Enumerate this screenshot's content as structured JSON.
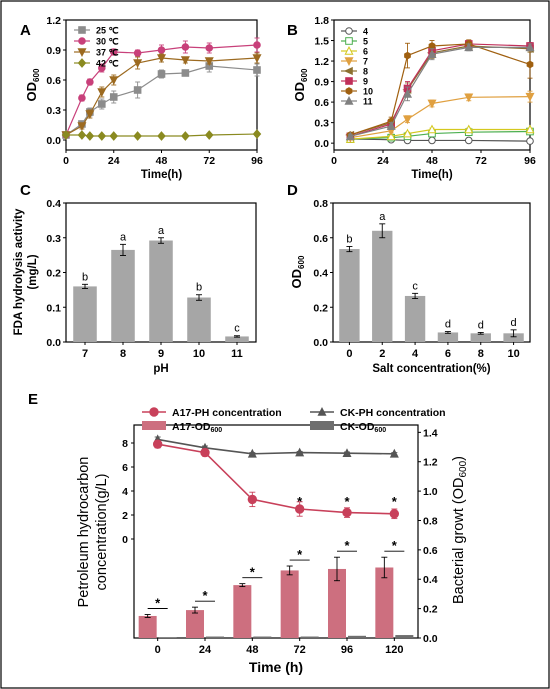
{
  "colors": {
    "t25": "#8c8c8c",
    "t30": "#c8407a",
    "t37": "#9c6a20",
    "t42": "#8a8a20",
    "ph4": "#555555",
    "ph5": "#4caf50",
    "ph6": "#d4c81e",
    "ph7": "#e0a040",
    "ph8": "#8c7030",
    "ph9": "#c0305a",
    "ph10": "#a06010",
    "ph11": "#808080",
    "bar": "#a6a6a6",
    "a17": "#c8405a",
    "a17bar": "#cd6f7f",
    "ck": "#555555",
    "ckbar": "#6e6e6e"
  },
  "chart_data": [
    {
      "panel": "A",
      "type": "line",
      "xlabel": "Time(h)",
      "ylabel": "OD600",
      "ylabel_main": "OD",
      "ylabel_sub": "600",
      "xlim": [
        0,
        96
      ],
      "ylim": [
        -0.1,
        1.2
      ],
      "xticks": [
        0,
        24,
        48,
        72,
        96
      ],
      "yticks": [
        0.0,
        0.3,
        0.6,
        0.9,
        1.2
      ],
      "x": [
        0,
        8,
        12,
        18,
        24,
        36,
        48,
        60,
        72,
        96
      ],
      "legend": "top-left",
      "series": [
        {
          "name": "25 ℃",
          "values": [
            0.05,
            0.16,
            0.28,
            0.36,
            0.43,
            0.5,
            0.66,
            0.67,
            0.74,
            0.7
          ],
          "err": [
            0.01,
            0.02,
            0.04,
            0.05,
            0.06,
            0.08,
            0.04,
            0.03,
            0.06,
            0.06
          ],
          "marker": "square",
          "color": "t25"
        },
        {
          "name": "30 ℃",
          "values": [
            0.05,
            0.42,
            0.58,
            0.72,
            0.88,
            0.87,
            0.9,
            0.93,
            0.92,
            0.95
          ],
          "err": [
            0.01,
            0.03,
            0.03,
            0.04,
            0.03,
            0.03,
            0.05,
            0.06,
            0.05,
            0.07
          ],
          "marker": "circle",
          "color": "t30"
        },
        {
          "name": "37 ℃",
          "values": [
            0.05,
            0.14,
            0.26,
            0.48,
            0.6,
            0.77,
            0.82,
            0.8,
            0.79,
            0.82
          ],
          "err": [
            0.01,
            0.03,
            0.04,
            0.05,
            0.05,
            0.06,
            0.04,
            0.03,
            0.03,
            0.05
          ],
          "marker": "triangle-down",
          "color": "t37"
        },
        {
          "name": "42 ℃",
          "values": [
            0.05,
            0.05,
            0.04,
            0.04,
            0.04,
            0.04,
            0.04,
            0.04,
            0.05,
            0.06
          ],
          "err": [
            0.005,
            0.005,
            0.005,
            0.005,
            0.005,
            0.005,
            0.005,
            0.005,
            0.005,
            0.005
          ],
          "marker": "diamond",
          "color": "t42"
        }
      ]
    },
    {
      "panel": "B",
      "type": "line",
      "xlabel": "Time(h)",
      "ylabel": "OD600",
      "ylabel_main": "OD",
      "ylabel_sub": "600",
      "xlim": [
        0,
        96
      ],
      "ylim": [
        -0.1,
        1.8
      ],
      "xticks": [
        0,
        24,
        48,
        72,
        96
      ],
      "yticks": [
        0.0,
        0.3,
        0.6,
        0.9,
        1.2,
        1.5,
        1.8
      ],
      "x": [
        8,
        28,
        36,
        48,
        66,
        96
      ],
      "legend": "top-left",
      "series": [
        {
          "name": "4",
          "values": [
            0.06,
            0.05,
            0.04,
            0.04,
            0.04,
            0.03
          ],
          "err": [
            0.01,
            0.01,
            0.01,
            0.01,
            0.01,
            0.01
          ],
          "marker": "circle-open",
          "color": "ph4"
        },
        {
          "name": "5",
          "values": [
            0.06,
            0.08,
            0.1,
            0.14,
            0.16,
            0.17
          ],
          "err": [
            0.01,
            0.01,
            0.02,
            0.02,
            0.02,
            0.02
          ],
          "marker": "square-open",
          "color": "ph5"
        },
        {
          "name": "6",
          "values": [
            0.06,
            0.1,
            0.14,
            0.2,
            0.2,
            0.2
          ],
          "err": [
            0.01,
            0.01,
            0.02,
            0.02,
            0.02,
            0.02
          ],
          "marker": "triangle-open",
          "color": "ph6"
        },
        {
          "name": "7",
          "values": [
            0.08,
            0.18,
            0.35,
            0.58,
            0.67,
            0.68
          ],
          "err": [
            0.02,
            0.03,
            0.05,
            0.05,
            0.05,
            0.08
          ],
          "marker": "triangle-down",
          "color": "ph7"
        },
        {
          "name": "8",
          "values": [
            0.12,
            0.3,
            0.78,
            1.32,
            1.42,
            1.38
          ],
          "err": [
            0.03,
            0.05,
            0.1,
            0.08,
            0.06,
            0.05
          ],
          "marker": "triangle-left",
          "color": "ph8"
        },
        {
          "name": "9",
          "values": [
            0.1,
            0.28,
            0.8,
            1.35,
            1.45,
            1.42
          ],
          "err": [
            0.03,
            0.05,
            0.1,
            0.06,
            0.05,
            0.05
          ],
          "marker": "square",
          "color": "ph9"
        },
        {
          "name": "10",
          "values": [
            0.12,
            0.32,
            1.28,
            1.42,
            1.45,
            1.15
          ],
          "err": [
            0.03,
            0.06,
            0.18,
            0.08,
            0.06,
            0.2
          ],
          "marker": "hexagon",
          "color": "ph10"
        },
        {
          "name": "11",
          "values": [
            0.1,
            0.25,
            0.72,
            1.3,
            1.4,
            1.4
          ],
          "err": [
            0.03,
            0.05,
            0.1,
            0.08,
            0.05,
            0.05
          ],
          "marker": "triangle",
          "color": "ph11"
        }
      ]
    },
    {
      "panel": "C",
      "type": "bar",
      "xlabel": "pH",
      "ylabel": "FDA hydrolysis activity\n(mg/L)",
      "ylabel_lines": [
        "FDA hydrolysis activity",
        "(mg/L)"
      ],
      "categories": [
        "7",
        "8",
        "9",
        "10",
        "11"
      ],
      "values": [
        0.16,
        0.265,
        0.292,
        0.128,
        0.016
      ],
      "err": [
        0.006,
        0.016,
        0.008,
        0.008,
        0.002
      ],
      "letters": [
        "b",
        "a",
        "a",
        "b",
        "c"
      ],
      "ylim": [
        0.0,
        0.4
      ],
      "yticks": [
        0.0,
        0.1,
        0.2,
        0.3,
        0.4
      ]
    },
    {
      "panel": "D",
      "type": "bar",
      "xlabel": "Salt concentration(%)",
      "ylabel": "OD600",
      "ylabel_main": "OD",
      "ylabel_sub": "600",
      "categories": [
        "0",
        "2",
        "4",
        "6",
        "8",
        "10"
      ],
      "values": [
        0.535,
        0.64,
        0.265,
        0.055,
        0.05,
        0.05
      ],
      "err": [
        0.015,
        0.04,
        0.015,
        0.005,
        0.005,
        0.02
      ],
      "letters": [
        "b",
        "a",
        "c",
        "d",
        "d",
        "d"
      ],
      "ylim": [
        0.0,
        0.8
      ],
      "yticks": [
        0.0,
        0.2,
        0.4,
        0.6,
        0.8
      ]
    },
    {
      "panel": "E",
      "type": "line+bar",
      "xlabel": "Time (h)",
      "ylabel_left": "Petroleum hydrocarbon\nconcentration(g/L)",
      "ylabel_left_lines": [
        "Petroleum hydrocarbon",
        "concentration(g/L)"
      ],
      "ylabel_right": "Bacterial growt (OD600)",
      "ylabel_right_main": "Bacterial growt  (OD",
      "ylabel_right_sub": "600",
      "ylabel_right_end": ")",
      "categories": [
        "0",
        "24",
        "48",
        "72",
        "96",
        "120"
      ],
      "yticks_left": [
        0,
        2,
        4,
        6,
        8
      ],
      "yticks_right": [
        0.0,
        0.2,
        0.4,
        0.6,
        0.8,
        1.0,
        1.2,
        1.4
      ],
      "ylim_right": [
        0.0,
        1.45
      ],
      "legend": [
        {
          "label": "A17-PH concentration",
          "color": "a17",
          "kind": "line-circle"
        },
        {
          "label": "CK-PH concentration",
          "color": "ck",
          "kind": "line-triangle"
        },
        {
          "label": "A17-OD",
          "sub": "600",
          "color": "a17bar",
          "kind": "bar"
        },
        {
          "label": "CK-OD",
          "sub": "600",
          "color": "ckbar",
          "kind": "bar"
        }
      ],
      "series": [
        {
          "name": "A17-PH concentration",
          "values": [
            7.9,
            7.2,
            3.3,
            2.5,
            2.2,
            2.1
          ],
          "err": [
            0.3,
            0.3,
            0.6,
            0.6,
            0.4,
            0.4
          ]
        },
        {
          "name": "CK-PH concentration",
          "values": [
            8.3,
            7.6,
            7.1,
            7.2,
            7.15,
            7.1
          ],
          "err": [
            0.2,
            0.15,
            0.1,
            0.1,
            0.1,
            0.1
          ]
        },
        {
          "name": "A17-OD600",
          "values": [
            0.15,
            0.19,
            0.36,
            0.46,
            0.47,
            0.48
          ],
          "err": [
            0.01,
            0.02,
            0.01,
            0.03,
            0.08,
            0.07
          ]
        },
        {
          "name": "CK-OD600",
          "values": [
            0.005,
            0.01,
            0.01,
            0.01,
            0.015,
            0.02
          ],
          "err": [
            0.002,
            0.002,
            0.002,
            0.002,
            0.003,
            0.003
          ]
        }
      ],
      "significance": [
        "*",
        "*",
        "*",
        "*",
        "*",
        "*"
      ],
      "significance_top": [
        "",
        "",
        "*",
        "*",
        "*",
        "*"
      ]
    }
  ],
  "panel_labels": [
    "A",
    "B",
    "C",
    "D",
    "E"
  ]
}
